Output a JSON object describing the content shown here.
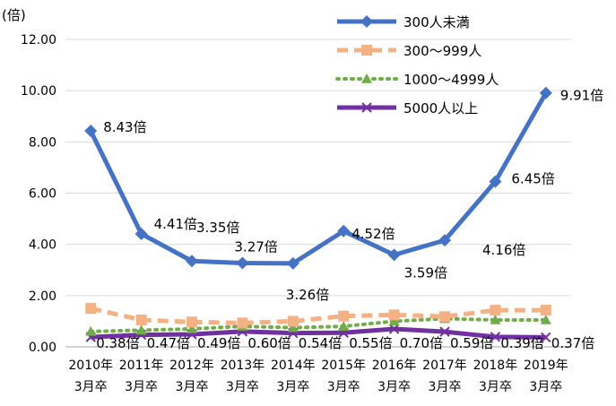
{
  "chart_data": {
    "type": "line",
    "unit_label": "(倍)",
    "categories": [
      [
        "2010年",
        "3月卒"
      ],
      [
        "2011年",
        "3月卒"
      ],
      [
        "2012年",
        "3月卒"
      ],
      [
        "2013年",
        "3月卒"
      ],
      [
        "2014年",
        "3月卒"
      ],
      [
        "2015年",
        "3月卒"
      ],
      [
        "2016年",
        "3月卒"
      ],
      [
        "2017年",
        "3月卒"
      ],
      [
        "2018年",
        "3月卒"
      ],
      [
        "2019年",
        "3月卒"
      ]
    ],
    "ylim": [
      0,
      12
    ],
    "yticks": [
      "0.00",
      "2.00",
      "4.00",
      "6.00",
      "8.00",
      "10.00",
      "12.00"
    ],
    "grid": true,
    "legend_position": "top-right",
    "series": [
      {
        "name": "300人未満",
        "color": "#4472c4",
        "marker": "diamond",
        "dash": "solid",
        "values": [
          8.43,
          4.41,
          3.35,
          3.27,
          3.26,
          4.52,
          3.59,
          4.16,
          6.45,
          9.91
        ],
        "labels": [
          "8.43倍",
          "4.41倍",
          "3.35倍",
          "3.27倍",
          "3.26倍",
          "4.52倍",
          "3.59倍",
          "4.16倍",
          "6.45倍",
          "9.91倍"
        ]
      },
      {
        "name": "300～999人",
        "color": "#f4b183",
        "marker": "square",
        "dash": "dashed",
        "values": [
          1.5,
          1.05,
          0.97,
          0.93,
          1.0,
          1.2,
          1.25,
          1.18,
          1.43,
          1.43
        ],
        "labels": []
      },
      {
        "name": "1000～4999人",
        "color": "#70ad47",
        "marker": "triangle",
        "dash": "dotted",
        "values": [
          0.6,
          0.65,
          0.7,
          0.8,
          0.75,
          0.8,
          1.0,
          1.1,
          1.05,
          1.05
        ],
        "labels": []
      },
      {
        "name": "5000人以上",
        "color": "#7030a0",
        "marker": "x",
        "dash": "solid",
        "values": [
          0.38,
          0.47,
          0.49,
          0.6,
          0.54,
          0.55,
          0.7,
          0.59,
          0.39,
          0.37
        ],
        "labels": [
          "0.38倍",
          "0.47倍",
          "0.49倍",
          "0.60倍",
          "0.54倍",
          "0.55倍",
          "0.70倍",
          "0.59倍",
          "0.39倍",
          "0.37倍"
        ]
      }
    ]
  }
}
